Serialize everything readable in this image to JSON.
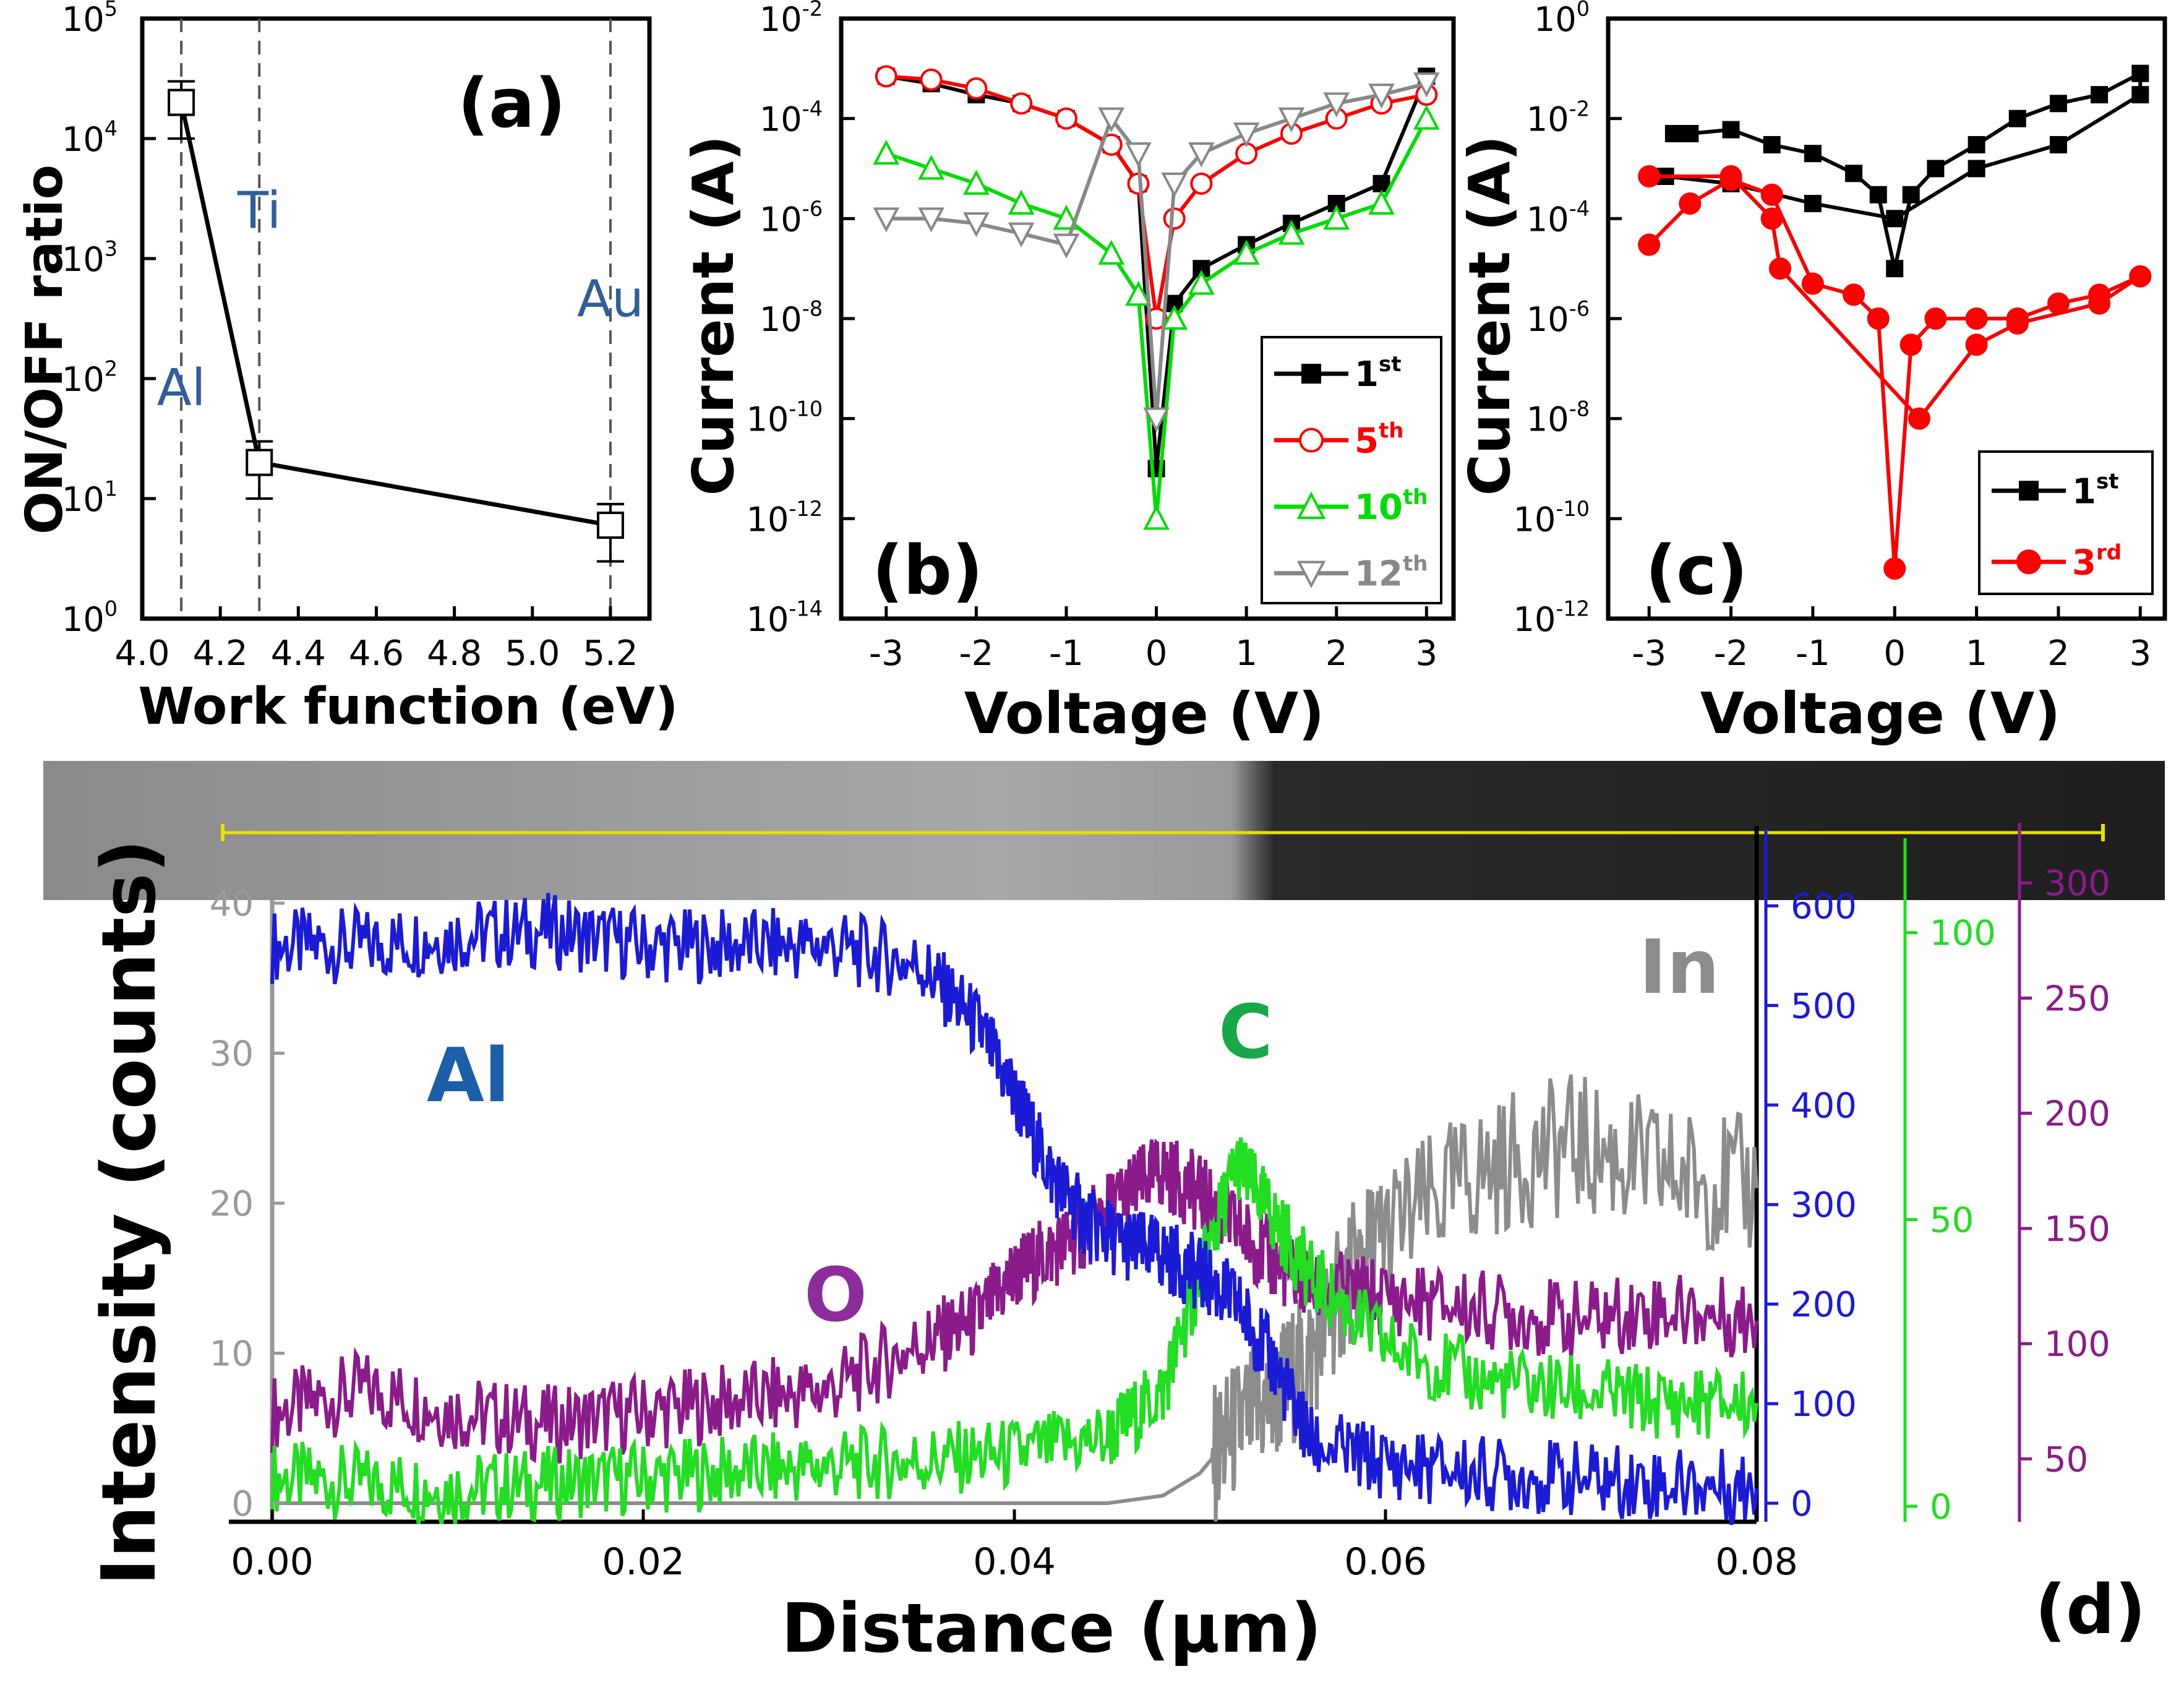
{
  "figure": {
    "panels": [
      "(a)",
      "(b)",
      "(c)",
      "(d)"
    ]
  },
  "chart_data": [
    {
      "panel": "(a)",
      "type": "line",
      "xlabel": "Work function (eV)",
      "ylabel": "ON/OFF ratio",
      "xlim": [
        4.0,
        5.3
      ],
      "ylim": [
        1,
        100000
      ],
      "y_scale": "log",
      "xticks": [
        "4.0",
        "4.2",
        "4.4",
        "4.6",
        "4.8",
        "5.0",
        "5.2"
      ],
      "yticks": [
        {
          "base": "10",
          "exp": "0"
        },
        {
          "base": "10",
          "exp": "1"
        },
        {
          "base": "10",
          "exp": "2"
        },
        {
          "base": "10",
          "exp": "3"
        },
        {
          "base": "10",
          "exp": "4"
        },
        {
          "base": "10",
          "exp": "5"
        }
      ],
      "points": [
        {
          "x": 4.1,
          "y": 20000,
          "err_low": 10000,
          "err_high": 30000
        },
        {
          "x": 4.3,
          "y": 20,
          "err_low": 10,
          "err_high": 30
        },
        {
          "x": 5.2,
          "y": 6,
          "err_low": 3,
          "err_high": 9
        }
      ],
      "vlines": [
        4.1,
        4.3,
        5.2
      ],
      "annotations": [
        {
          "text": "Al",
          "x": 4.1,
          "y": 60
        },
        {
          "text": "Ti",
          "x": 4.3,
          "y": 1800
        },
        {
          "text": "Au",
          "x": 5.2,
          "y": 330
        }
      ],
      "grid": false
    },
    {
      "panel": "(b)",
      "type": "line",
      "xlabel": "Voltage (V)",
      "ylabel": "Current (A)",
      "xlim": [
        -3.5,
        3.3
      ],
      "ylim": [
        1e-14,
        0.01
      ],
      "y_scale": "log",
      "xticks": [
        "-3",
        "-2",
        "-1",
        "0",
        "1",
        "2",
        "3"
      ],
      "yticks": [
        {
          "base": "10",
          "exp": "-14"
        },
        {
          "base": "10",
          "exp": "-12"
        },
        {
          "base": "10",
          "exp": "-10"
        },
        {
          "base": "10",
          "exp": "-8"
        },
        {
          "base": "10",
          "exp": "-6"
        },
        {
          "base": "10",
          "exp": "-4"
        },
        {
          "base": "10",
          "exp": "-2"
        }
      ],
      "legend_position": "bottom-right",
      "series": [
        {
          "name": "1",
          "sup": "st",
          "color": "#000000",
          "marker": "square",
          "x": [
            -3,
            -2.5,
            -2,
            -1.5,
            -1,
            -0.5,
            -0.2,
            0,
            0.2,
            0.5,
            1,
            1.5,
            2,
            2.5,
            3
          ],
          "y": [
            0.0007,
            0.0005,
            0.0003,
            0.0002,
            0.0001,
            3e-05,
            5e-06,
            1e-11,
            2e-08,
            1e-07,
            3e-07,
            8e-07,
            2e-06,
            5e-06,
            0.0007
          ]
        },
        {
          "name": "5",
          "sup": "th",
          "color": "#ff0000",
          "marker": "circle",
          "x": [
            -3,
            -2.5,
            -2,
            -1.5,
            -1,
            -0.5,
            -0.2,
            0,
            0.2,
            0.5,
            1,
            1.5,
            2,
            2.5,
            3
          ],
          "y": [
            0.0007,
            0.0006,
            0.0004,
            0.0002,
            0.0001,
            3e-05,
            5e-06,
            1e-08,
            1e-06,
            5e-06,
            2e-05,
            5e-05,
            0.0001,
            0.0002,
            0.0003
          ]
        },
        {
          "name": "10",
          "sup": "th",
          "color": "#00dd00",
          "marker": "triangle-up",
          "x": [
            -3,
            -2.5,
            -2,
            -1.5,
            -1,
            -0.5,
            -0.2,
            0,
            0.2,
            0.5,
            1,
            1.5,
            2,
            2.5,
            3
          ],
          "y": [
            2e-05,
            1e-05,
            5e-06,
            2e-06,
            1e-06,
            2e-07,
            3e-08,
            1e-12,
            1e-08,
            5e-08,
            2e-07,
            5e-07,
            1e-06,
            2e-06,
            0.0001
          ]
        },
        {
          "name": "12",
          "sup": "th",
          "color": "#888888",
          "marker": "triangle-down",
          "x": [
            -3,
            -2.5,
            -2,
            -1.5,
            -1,
            -0.5,
            -0.2,
            0,
            0.2,
            0.5,
            1,
            1.5,
            2,
            2.5,
            3
          ],
          "y": [
            1e-06,
            1e-06,
            8e-07,
            5e-07,
            3e-07,
            0.0001,
            2e-05,
            1e-10,
            5e-06,
            2e-05,
            5e-05,
            0.0001,
            0.0002,
            0.0003,
            0.0005
          ]
        }
      ],
      "grid": false
    },
    {
      "panel": "(c)",
      "type": "line",
      "xlabel": "Voltage (V)",
      "ylabel": "Current (A)",
      "xlim": [
        -3.5,
        3.3
      ],
      "ylim": [
        1e-12,
        1
      ],
      "y_scale": "log",
      "xticks": [
        "-3",
        "-2",
        "-1",
        "0",
        "1",
        "2",
        "3"
      ],
      "yticks": [
        {
          "base": "10",
          "exp": "-12"
        },
        {
          "base": "10",
          "exp": "-10"
        },
        {
          "base": "10",
          "exp": "-8"
        },
        {
          "base": "10",
          "exp": "-6"
        },
        {
          "base": "10",
          "exp": "-4"
        },
        {
          "base": "10",
          "exp": "-2"
        },
        {
          "base": "10",
          "exp": "0"
        }
      ],
      "legend_position": "bottom-right",
      "series": [
        {
          "name": "1",
          "sup": "st",
          "color": "#000000",
          "marker": "square",
          "x": [
            -2.7,
            -2.5,
            -2,
            -1.5,
            -1,
            -0.5,
            -0.2,
            0,
            0.2,
            0.5,
            1,
            1.5,
            2,
            2.5,
            3,
            3,
            2,
            1,
            0,
            -1,
            -2,
            -2.8
          ],
          "y": [
            0.005,
            0.005,
            0.006,
            0.003,
            0.002,
            0.0008,
            0.0003,
            1e-05,
            0.0003,
            0.001,
            0.003,
            0.01,
            0.02,
            0.03,
            0.08,
            0.03,
            0.003,
            0.001,
            0.0001,
            0.0002,
            0.0005,
            0.0007
          ]
        },
        {
          "name": "3",
          "sup": "rd",
          "color": "#ff0000",
          "marker": "circle",
          "x": [
            -3,
            -2.5,
            -2,
            -1.5,
            -1,
            -0.5,
            -0.2,
            0,
            0.2,
            0.5,
            1,
            1.5,
            2,
            2.5,
            3,
            2.5,
            1.5,
            1,
            0.3,
            -1.4,
            -1.5,
            -2,
            -3
          ],
          "y": [
            3e-05,
            0.0002,
            0.0006,
            0.0003,
            5e-06,
            3e-06,
            1e-06,
            1e-11,
            3e-07,
            1e-06,
            1e-06,
            1e-06,
            2e-06,
            3e-06,
            7e-06,
            2e-06,
            8e-07,
            3e-07,
            1e-08,
            1e-05,
            0.0001,
            0.0007,
            0.0007
          ]
        }
      ],
      "grid": false
    },
    {
      "panel": "(d)",
      "type": "line",
      "xlabel": "Distance (μm)",
      "ylabel": "Intensity (counts)",
      "xlim": [
        0,
        0.08
      ],
      "xticks": [
        "0.00",
        "0.02",
        "0.04",
        "0.06",
        "0.08"
      ],
      "y_axes": [
        {
          "name": "left",
          "color": "#999999",
          "ylim": [
            0,
            40
          ],
          "ticks": [
            "0",
            "10",
            "20",
            "30",
            "40"
          ]
        },
        {
          "name": "Al",
          "color": "#1b1bd6",
          "ylim": [
            0,
            640
          ],
          "ticks": [
            "0",
            "100",
            "200",
            "300",
            "400",
            "500",
            "600"
          ]
        },
        {
          "name": "C",
          "color": "#22dd22",
          "ylim": [
            0,
            110
          ],
          "ticks": [
            "0",
            "50",
            "100"
          ]
        },
        {
          "name": "O",
          "color": "#8b1a8b",
          "ylim": [
            20,
            310
          ],
          "ticks": [
            "50",
            "100",
            "150",
            "200",
            "250",
            "300"
          ]
        }
      ],
      "series": [
        {
          "name": "Al",
          "color": "#1b1bd6",
          "axis": "Al",
          "x": [
            0,
            0.005,
            0.01,
            0.015,
            0.02,
            0.025,
            0.03,
            0.035,
            0.038,
            0.04,
            0.042,
            0.044,
            0.046,
            0.048,
            0.05,
            0.052,
            0.054,
            0.056,
            0.06,
            0.065,
            0.07,
            0.075,
            0.08
          ],
          "y": [
            560,
            560,
            570,
            575,
            560,
            560,
            560,
            540,
            480,
            410,
            330,
            280,
            260,
            250,
            230,
            200,
            140,
            60,
            40,
            30,
            25,
            20,
            15
          ]
        },
        {
          "name": "O",
          "color": "#8b1a8b",
          "axis": "O",
          "x": [
            0,
            0.005,
            0.01,
            0.015,
            0.02,
            0.025,
            0.03,
            0.035,
            0.038,
            0.04,
            0.042,
            0.044,
            0.046,
            0.048,
            0.05,
            0.052,
            0.054,
            0.056,
            0.06,
            0.065,
            0.07,
            0.075,
            0.08
          ],
          "y": [
            70,
            80,
            70,
            65,
            70,
            75,
            80,
            100,
            110,
            130,
            140,
            150,
            165,
            175,
            165,
            150,
            135,
            125,
            120,
            115,
            110,
            115,
            110
          ]
        },
        {
          "name": "C",
          "color": "#22dd22",
          "axis": "C",
          "x": [
            0,
            0.005,
            0.01,
            0.015,
            0.02,
            0.025,
            0.03,
            0.035,
            0.04,
            0.045,
            0.048,
            0.05,
            0.052,
            0.054,
            0.056,
            0.06,
            0.065,
            0.07,
            0.075,
            0.08
          ],
          "y": [
            5,
            4,
            3,
            4,
            5,
            6,
            7,
            8,
            9,
            12,
            20,
            40,
            60,
            50,
            40,
            28,
            22,
            20,
            18,
            18
          ]
        },
        {
          "name": "In",
          "color": "#8c8c8c",
          "axis": "left",
          "x": [
            0,
            0.01,
            0.02,
            0.03,
            0.04,
            0.045,
            0.048,
            0.05,
            0.052,
            0.054,
            0.056,
            0.058,
            0.06,
            0.065,
            0.07,
            0.075,
            0.08
          ],
          "y": [
            0,
            0,
            0,
            0,
            0,
            0,
            0.5,
            2,
            5,
            7,
            10,
            15,
            18,
            22,
            24,
            22,
            21
          ]
        }
      ],
      "annotations": [
        {
          "text": "Al",
          "color": "#1a5fa8"
        },
        {
          "text": "O",
          "color": "#8b2e9b"
        },
        {
          "text": "C",
          "color": "#18a84a"
        },
        {
          "text": "In",
          "color": "#8c8c8c"
        }
      ],
      "grid": false
    }
  ]
}
